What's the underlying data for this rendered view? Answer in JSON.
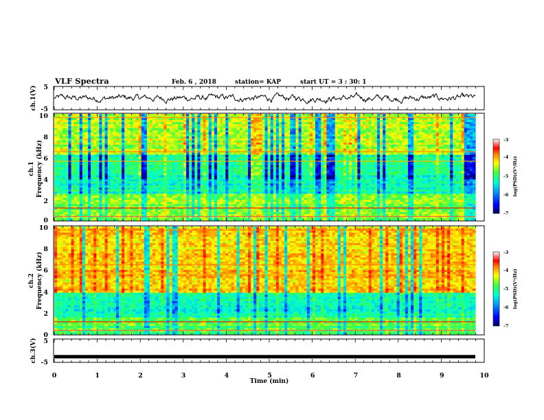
{
  "header": {
    "title": "VLF Spectra",
    "date": "Feb. 6 , 2018",
    "station": "station= KAP",
    "start": "start UT = 3 : 30: 1"
  },
  "chart_data": [
    {
      "type": "line",
      "name": "ch1-waveform",
      "ylabel": "ch.1(V)",
      "ylim": [
        -5,
        5
      ],
      "yticks": [
        "5",
        "-5"
      ],
      "xlim": [
        0,
        10
      ],
      "description_trace": "noisy waveform around about 0 V, roughly ±2 V"
    },
    {
      "type": "heatmap",
      "name": "ch1-spectrogram",
      "ylabel_a": "ch.1",
      "ylabel_b": "Frequency (kHz)",
      "ylim": [
        0,
        10
      ],
      "yticks": [
        "0",
        "2",
        "4",
        "6",
        "8",
        "10"
      ],
      "xlim": [
        0,
        10
      ],
      "colorbar": {
        "label": "log(PSD)(V²/Hz)",
        "ticks": [
          "-3",
          "-4",
          "-5",
          "-6",
          "-7"
        ],
        "range": [
          -7,
          -3
        ]
      }
    },
    {
      "type": "heatmap",
      "name": "ch2-spectrogram",
      "ylabel_a": "ch.2",
      "ylabel_b": "Frequency (kHz)",
      "ylim": [
        0,
        10
      ],
      "yticks": [
        "0",
        "2",
        "4",
        "6",
        "8",
        "10"
      ],
      "xlim": [
        0,
        10
      ],
      "colorbar": {
        "label": "log(PSD)(V²/Hz)",
        "ticks": [
          "-3",
          "-4",
          "-5",
          "-6",
          "-7"
        ],
        "range": [
          -7,
          -3
        ]
      }
    },
    {
      "type": "line",
      "name": "ch3-waveform",
      "ylabel": "ch.3(V)",
      "ylim": [
        -5,
        5
      ],
      "yticks": [
        "5",
        "-5"
      ],
      "xlim": [
        0,
        10
      ],
      "constant_value": -2.6
    }
  ],
  "xaxis": {
    "label": "Time (min)",
    "ticks": [
      "0",
      "1",
      "2",
      "3",
      "4",
      "5",
      "6",
      "7",
      "8",
      "9",
      "10"
    ]
  },
  "colors": {
    "trace": "#000000",
    "colormap": [
      "#00005a",
      "#0000ff",
      "#00a0ff",
      "#00ffd0",
      "#40ff40",
      "#ffff00",
      "#ff8000",
      "#ff0000",
      "#ff9090",
      "#ffffff"
    ]
  }
}
